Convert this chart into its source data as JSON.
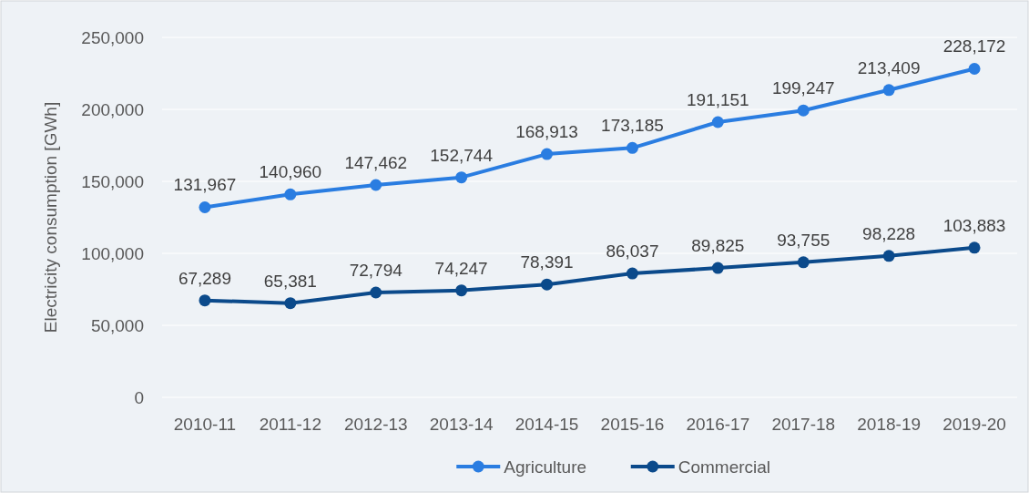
{
  "chart_data": {
    "type": "line",
    "ylabel": "Electricity consumption [GWh]",
    "categories": [
      "2010-11",
      "2011-12",
      "2012-13",
      "2013-14",
      "2014-15",
      "2015-16",
      "2016-17",
      "2017-18",
      "2018-19",
      "2019-20"
    ],
    "series": [
      {
        "name": "Agriculture",
        "color": "#2a7de1",
        "values": [
          131967,
          140960,
          147462,
          152744,
          168913,
          173185,
          191151,
          199247,
          213409,
          228172
        ],
        "value_labels": [
          "131,967",
          "140,960",
          "147,462",
          "152,744",
          "168,913",
          "173,185",
          "191,151",
          "199,247",
          "213,409",
          "228,172"
        ]
      },
      {
        "name": "Commercial",
        "color": "#0b4a8b",
        "values": [
          67289,
          65381,
          72794,
          74247,
          78391,
          86037,
          89825,
          93755,
          98228,
          103883
        ],
        "value_labels": [
          "67,289",
          "65,381",
          "72,794",
          "74,247",
          "78,391",
          "86,037",
          "89,825",
          "93,755",
          "98,228",
          "103,883"
        ]
      }
    ],
    "ylim": [
      0,
      250000
    ],
    "yticks": [
      {
        "value": 0,
        "label": "0"
      },
      {
        "value": 50000,
        "label": "50,000"
      },
      {
        "value": 100000,
        "label": "100,000"
      },
      {
        "value": 150000,
        "label": "150,000"
      },
      {
        "value": 200000,
        "label": "200,000"
      },
      {
        "value": 250000,
        "label": "250,000"
      }
    ],
    "grid": "y",
    "legend": "bottom",
    "marker": "circle"
  }
}
